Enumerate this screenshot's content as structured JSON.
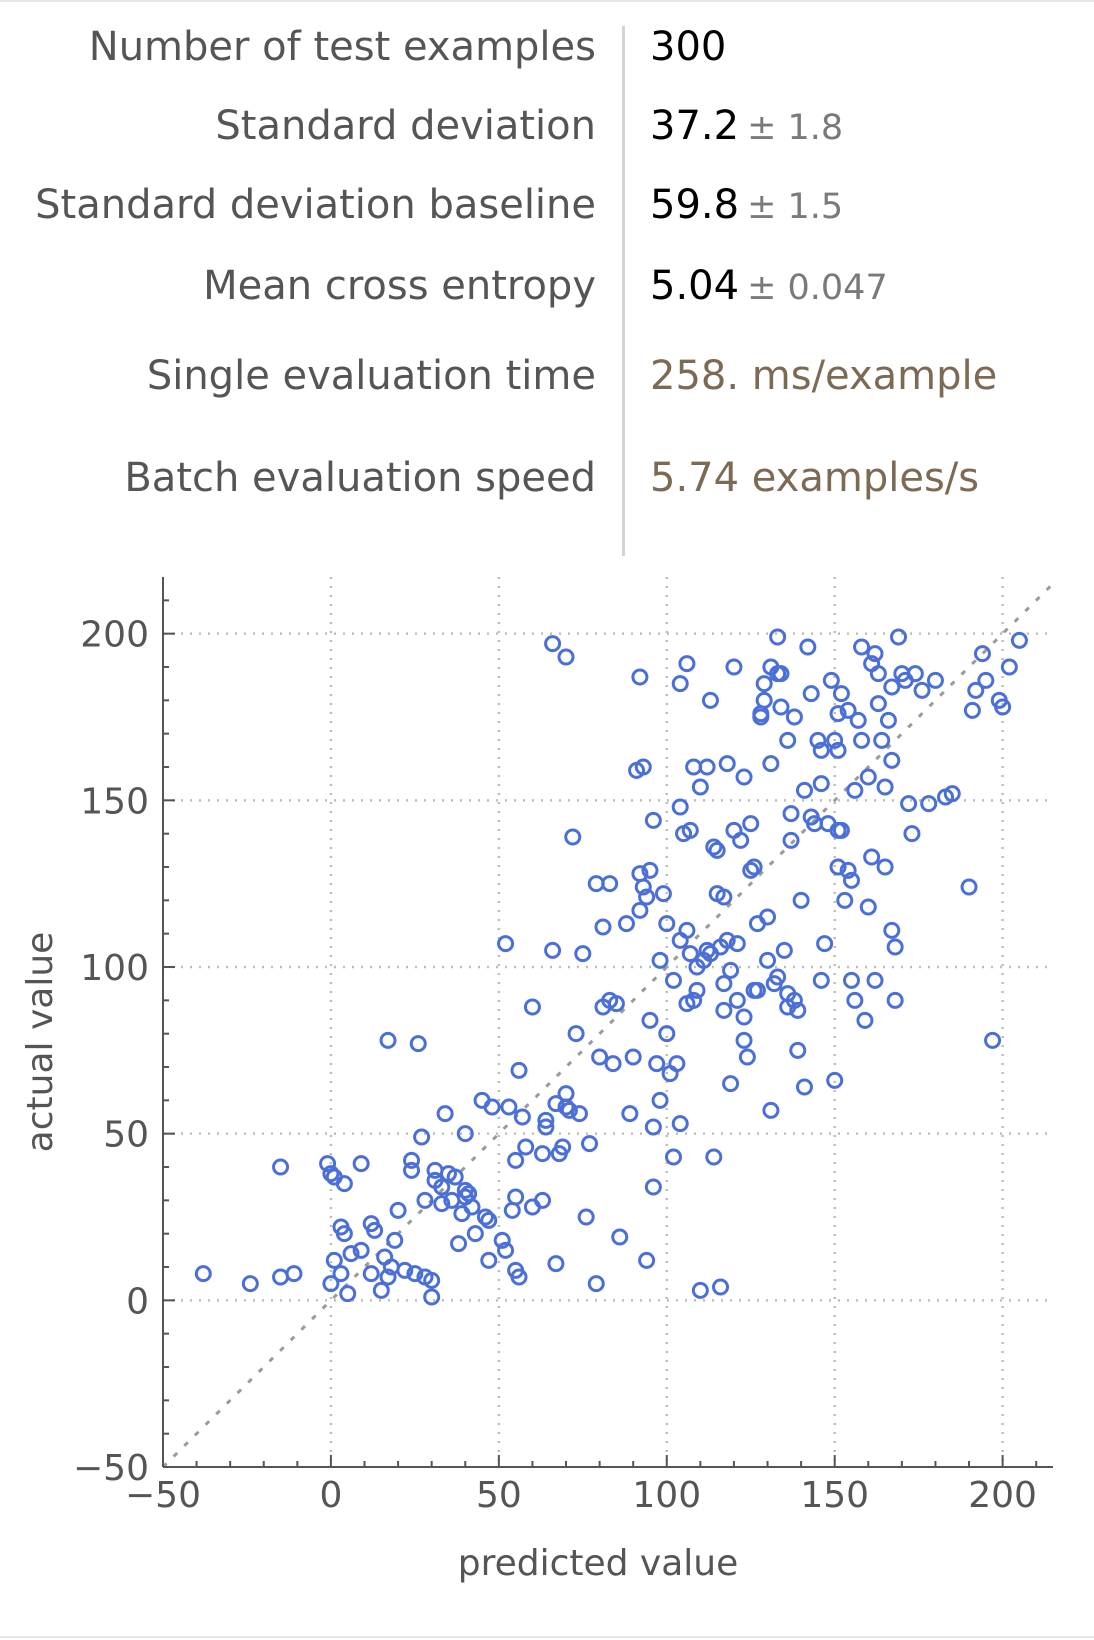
{
  "stats": [
    {
      "label": "Number of test examples",
      "value": "300",
      "err": ""
    },
    {
      "label": "Standard deviation",
      "value": "37.2",
      "err": "± 1.8"
    },
    {
      "label": "Standard deviation baseline",
      "value": "59.8",
      "err": "± 1.5"
    },
    {
      "label": "Mean cross entropy",
      "value": "5.04",
      "err": "± 0.047"
    },
    {
      "label": "Single evaluation time",
      "value": "258. ms/example",
      "err": ""
    },
    {
      "label": "Batch evaluation speed",
      "value": "5.74 examples/s",
      "err": ""
    }
  ],
  "chart_data": {
    "type": "scatter",
    "xlabel": "predicted value",
    "ylabel": "actual value",
    "xlim": [
      -50,
      215
    ],
    "ylim": [
      -50,
      217
    ],
    "xticks": [
      "−50",
      "0",
      "50",
      "100",
      "150",
      "200"
    ],
    "yticks": [
      "−50",
      "0",
      "50",
      "100",
      "150",
      "200"
    ],
    "grid": true,
    "reference_line": "y = x (dashed)",
    "colors": {
      "points": "#4a6fd8",
      "grid": "#bdbdbd",
      "reference": "#9a9a9a",
      "axis": "#555555"
    },
    "points": [
      [
        -38,
        8
      ],
      [
        -24,
        5
      ],
      [
        -15,
        7
      ],
      [
        -11,
        8
      ],
      [
        -15,
        40
      ],
      [
        -1,
        41
      ],
      [
        0,
        38
      ],
      [
        1,
        37
      ],
      [
        4,
        35
      ],
      [
        9,
        41
      ],
      [
        0,
        5
      ],
      [
        3,
        8
      ],
      [
        1,
        12
      ],
      [
        5,
        2
      ],
      [
        3,
        22
      ],
      [
        4,
        20
      ],
      [
        6,
        14
      ],
      [
        9,
        15
      ],
      [
        12,
        23
      ],
      [
        13,
        21
      ],
      [
        12,
        8
      ],
      [
        15,
        3
      ],
      [
        16,
        13
      ],
      [
        17,
        7
      ],
      [
        18,
        10
      ],
      [
        19,
        18
      ],
      [
        20,
        27
      ],
      [
        22,
        9
      ],
      [
        24,
        42
      ],
      [
        24,
        39
      ],
      [
        25,
        8
      ],
      [
        27,
        49
      ],
      [
        28,
        7
      ],
      [
        28,
        30
      ],
      [
        30,
        6
      ],
      [
        30,
        1
      ],
      [
        31,
        39
      ],
      [
        31,
        36
      ],
      [
        33,
        29
      ],
      [
        33,
        34
      ],
      [
        34,
        56
      ],
      [
        35,
        38
      ],
      [
        36,
        30
      ],
      [
        37,
        37
      ],
      [
        38,
        17
      ],
      [
        39,
        26
      ],
      [
        40,
        31
      ],
      [
        40,
        33
      ],
      [
        41,
        32
      ],
      [
        40,
        50
      ],
      [
        42,
        28
      ],
      [
        43,
        20
      ],
      [
        45,
        60
      ],
      [
        46,
        25
      ],
      [
        47,
        24
      ],
      [
        47,
        12
      ],
      [
        48,
        58
      ],
      [
        51,
        18
      ],
      [
        52,
        15
      ],
      [
        53,
        58
      ],
      [
        54,
        27
      ],
      [
        55,
        31
      ],
      [
        55,
        9
      ],
      [
        56,
        7
      ],
      [
        55,
        42
      ],
      [
        56,
        69
      ],
      [
        57,
        55
      ],
      [
        58,
        46
      ],
      [
        60,
        28
      ],
      [
        63,
        30
      ],
      [
        63,
        44
      ],
      [
        64,
        52
      ],
      [
        64,
        54
      ],
      [
        66,
        105
      ],
      [
        66,
        197
      ],
      [
        67,
        59
      ],
      [
        67,
        11
      ],
      [
        68,
        44
      ],
      [
        69,
        46
      ],
      [
        70,
        62
      ],
      [
        70,
        193
      ],
      [
        70,
        58
      ],
      [
        71,
        57
      ],
      [
        72,
        139
      ],
      [
        75,
        104
      ],
      [
        73,
        80
      ],
      [
        74,
        56
      ],
      [
        76,
        25
      ],
      [
        77,
        47
      ],
      [
        79,
        125
      ],
      [
        79,
        5
      ],
      [
        80,
        73
      ],
      [
        81,
        112
      ],
      [
        81,
        88
      ],
      [
        83,
        125
      ],
      [
        83,
        90
      ],
      [
        84,
        71
      ],
      [
        85,
        89
      ],
      [
        86,
        19
      ],
      [
        88,
        113
      ],
      [
        89,
        56
      ],
      [
        90,
        73
      ],
      [
        91,
        159
      ],
      [
        92,
        117
      ],
      [
        92,
        128
      ],
      [
        93,
        124
      ],
      [
        93,
        160
      ],
      [
        94,
        121
      ],
      [
        94,
        12
      ],
      [
        95,
        129
      ],
      [
        95,
        84
      ],
      [
        96,
        52
      ],
      [
        96,
        34
      ],
      [
        97,
        71
      ],
      [
        98,
        102
      ],
      [
        98,
        60
      ],
      [
        99,
        122
      ],
      [
        100,
        80
      ],
      [
        100,
        113
      ],
      [
        101,
        68
      ],
      [
        102,
        96
      ],
      [
        102,
        43
      ],
      [
        103,
        71
      ],
      [
        104,
        185
      ],
      [
        104,
        53
      ],
      [
        104,
        108
      ],
      [
        105,
        140
      ],
      [
        106,
        191
      ],
      [
        106,
        89
      ],
      [
        107,
        104
      ],
      [
        108,
        90
      ],
      [
        108,
        160
      ],
      [
        109,
        93
      ],
      [
        110,
        154
      ],
      [
        110,
        3
      ],
      [
        111,
        102
      ],
      [
        112,
        160
      ],
      [
        112,
        105
      ],
      [
        113,
        180
      ],
      [
        113,
        104
      ],
      [
        114,
        43
      ],
      [
        115,
        122
      ],
      [
        116,
        106
      ],
      [
        117,
        95
      ],
      [
        117,
        121
      ],
      [
        117,
        87
      ],
      [
        118,
        161
      ],
      [
        118,
        108
      ],
      [
        119,
        65
      ],
      [
        120,
        141
      ],
      [
        121,
        90
      ],
      [
        121,
        107
      ],
      [
        122,
        138
      ],
      [
        123,
        85
      ],
      [
        123,
        78
      ],
      [
        124,
        73
      ],
      [
        125,
        143
      ],
      [
        125,
        129
      ],
      [
        126,
        93
      ],
      [
        127,
        113
      ],
      [
        128,
        176
      ],
      [
        129,
        180
      ],
      [
        129,
        185
      ],
      [
        130,
        115
      ],
      [
        131,
        190
      ],
      [
        131,
        57
      ],
      [
        131,
        161
      ],
      [
        132,
        95
      ],
      [
        133,
        188
      ],
      [
        133,
        199
      ],
      [
        134,
        188
      ],
      [
        134,
        178
      ],
      [
        135,
        105
      ],
      [
        136,
        88
      ],
      [
        136,
        92
      ],
      [
        137,
        138
      ],
      [
        137,
        146
      ],
      [
        138,
        175
      ],
      [
        139,
        87
      ],
      [
        140,
        120
      ],
      [
        141,
        153
      ],
      [
        142,
        196
      ],
      [
        143,
        145
      ],
      [
        144,
        143
      ],
      [
        145,
        168
      ],
      [
        146,
        96
      ],
      [
        147,
        107
      ],
      [
        148,
        143
      ],
      [
        149,
        186
      ],
      [
        150,
        168
      ],
      [
        151,
        165
      ],
      [
        152,
        182
      ],
      [
        152,
        141
      ],
      [
        153,
        120
      ],
      [
        154,
        129
      ],
      [
        155,
        126
      ],
      [
        156,
        153
      ],
      [
        156,
        90
      ],
      [
        157,
        174
      ],
      [
        158,
        196
      ],
      [
        159,
        84
      ],
      [
        160,
        157
      ],
      [
        160,
        118
      ],
      [
        161,
        191
      ],
      [
        161,
        133
      ],
      [
        162,
        194
      ],
      [
        163,
        188
      ],
      [
        164,
        168
      ],
      [
        165,
        130
      ],
      [
        165,
        154
      ],
      [
        166,
        174
      ],
      [
        167,
        184
      ],
      [
        167,
        111
      ],
      [
        168,
        90
      ],
      [
        168,
        106
      ],
      [
        169,
        199
      ],
      [
        170,
        188
      ],
      [
        171,
        186
      ],
      [
        172,
        149
      ],
      [
        173,
        140
      ],
      [
        174,
        188
      ],
      [
        176,
        183
      ],
      [
        178,
        149
      ],
      [
        180,
        186
      ],
      [
        183,
        151
      ],
      [
        185,
        152
      ],
      [
        190,
        124
      ],
      [
        191,
        177
      ],
      [
        192,
        183
      ],
      [
        194,
        194
      ],
      [
        195,
        186
      ],
      [
        197,
        78
      ],
      [
        199,
        180
      ],
      [
        200,
        178
      ],
      [
        202,
        190
      ],
      [
        205,
        198
      ],
      [
        158,
        168
      ],
      [
        136,
        168
      ],
      [
        146,
        165
      ],
      [
        126,
        130
      ],
      [
        127,
        93
      ],
      [
        133,
        97
      ],
      [
        119,
        99
      ],
      [
        109,
        100
      ],
      [
        114,
        136
      ],
      [
        107,
        141
      ],
      [
        96,
        144
      ],
      [
        60,
        88
      ],
      [
        52,
        107
      ],
      [
        26,
        77
      ],
      [
        17,
        78
      ],
      [
        143,
        182
      ],
      [
        150,
        66
      ],
      [
        120,
        190
      ],
      [
        92,
        187
      ],
      [
        116,
        4
      ],
      [
        151,
        130
      ],
      [
        151,
        141
      ],
      [
        123,
        157
      ],
      [
        155,
        96
      ],
      [
        162,
        96
      ],
      [
        163,
        179
      ],
      [
        167,
        162
      ],
      [
        138,
        90
      ],
      [
        141,
        64
      ],
      [
        139,
        75
      ],
      [
        130,
        102
      ],
      [
        128,
        175
      ],
      [
        146,
        155
      ],
      [
        151,
        176
      ],
      [
        154,
        177
      ],
      [
        115,
        135
      ],
      [
        106,
        111
      ],
      [
        104,
        148
      ]
    ]
  }
}
